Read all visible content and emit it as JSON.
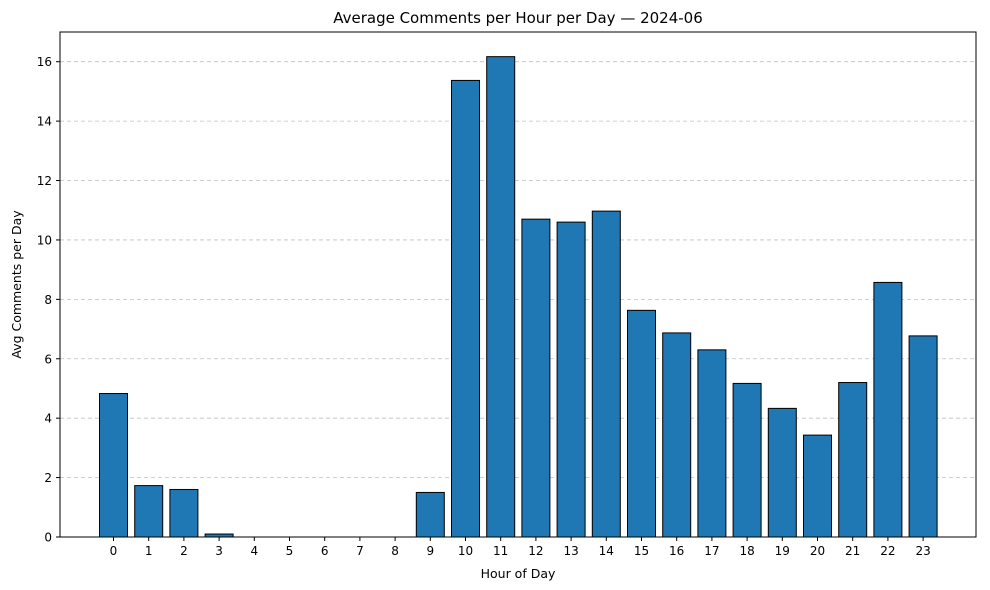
{
  "chart_data": {
    "type": "bar",
    "title": "Average Comments per Hour per Day — 2024-06",
    "xlabel": "Hour of Day",
    "ylabel": "Avg Comments per Day",
    "categories": [
      "0",
      "1",
      "2",
      "3",
      "4",
      "5",
      "6",
      "7",
      "8",
      "9",
      "10",
      "11",
      "12",
      "13",
      "14",
      "15",
      "16",
      "17",
      "18",
      "19",
      "20",
      "21",
      "22",
      "23"
    ],
    "values": [
      4.83,
      1.73,
      1.6,
      0.1,
      0,
      0,
      0,
      0,
      0,
      1.5,
      15.37,
      16.17,
      10.7,
      10.6,
      10.97,
      7.63,
      6.87,
      6.3,
      5.17,
      4.33,
      3.43,
      5.2,
      8.57,
      6.77
    ],
    "ylim": [
      0,
      17
    ],
    "yticks": [
      0,
      2,
      4,
      6,
      8,
      10,
      12,
      14,
      16
    ],
    "grid": "y-dashed",
    "colors": {
      "bar": "#1f77b4",
      "edge": "#000000",
      "grid": "#c0c0c0"
    }
  }
}
